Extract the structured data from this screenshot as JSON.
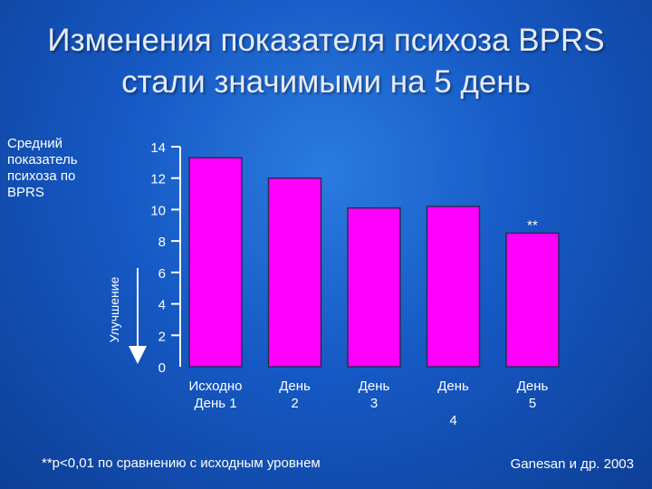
{
  "title_line1": "Изменения показателя психоза BPRS",
  "title_line2": "стали значимыми на 5 день",
  "ylabel": [
    "Средний",
    "показатель",
    "психоза по",
    "BPRS"
  ],
  "arrow_label": "Улучшение",
  "footnote": "**p<0,01  по сравнению с исходным уровнем",
  "source": "Ganesan и др. 2003",
  "colors": {
    "bar": "#ff00ff",
    "axis": "#ffffff"
  },
  "chart_data": {
    "type": "bar",
    "categories": [
      [
        "Исходно",
        "День 1"
      ],
      [
        "День",
        "2"
      ],
      [
        "День",
        "3"
      ],
      [
        "День",
        "",
        "4"
      ],
      [
        "День",
        "5"
      ]
    ],
    "values": [
      13.3,
      12.0,
      10.1,
      10.2,
      8.5
    ],
    "annotations": [
      "",
      "",
      "",
      "",
      "**"
    ],
    "ylim": [
      0,
      14
    ],
    "yticks": [
      "0",
      "2",
      "4",
      "6",
      "8",
      "10",
      "12",
      "14"
    ]
  }
}
